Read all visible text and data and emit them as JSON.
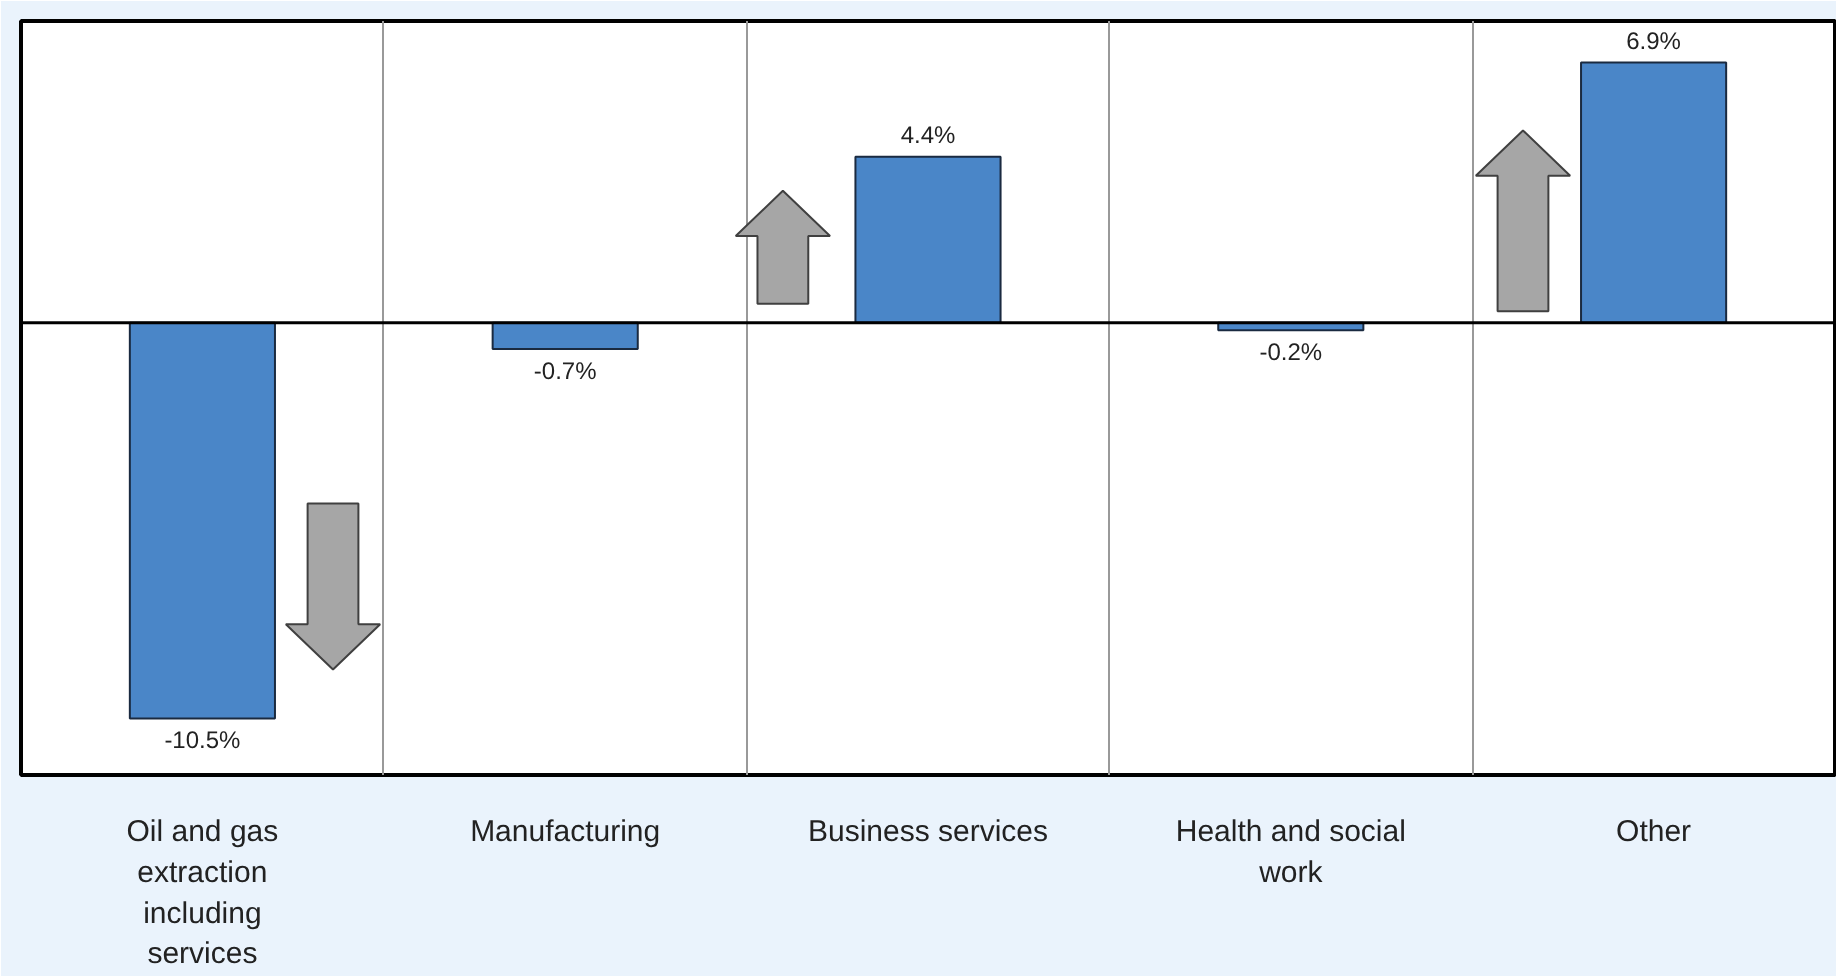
{
  "chart_data": {
    "type": "bar",
    "categories": [
      "Oil and gas extraction including services",
      "Manufacturing",
      "Business services",
      "Health and social work",
      "Other"
    ],
    "values": [
      -10.5,
      -0.7,
      4.4,
      -0.2,
      6.9
    ],
    "value_labels": [
      "-10.5%",
      "-0.7%",
      "4.4%",
      "-0.2%",
      "6.9%"
    ],
    "color": "#4a86c8",
    "grid": "x"
  }
}
